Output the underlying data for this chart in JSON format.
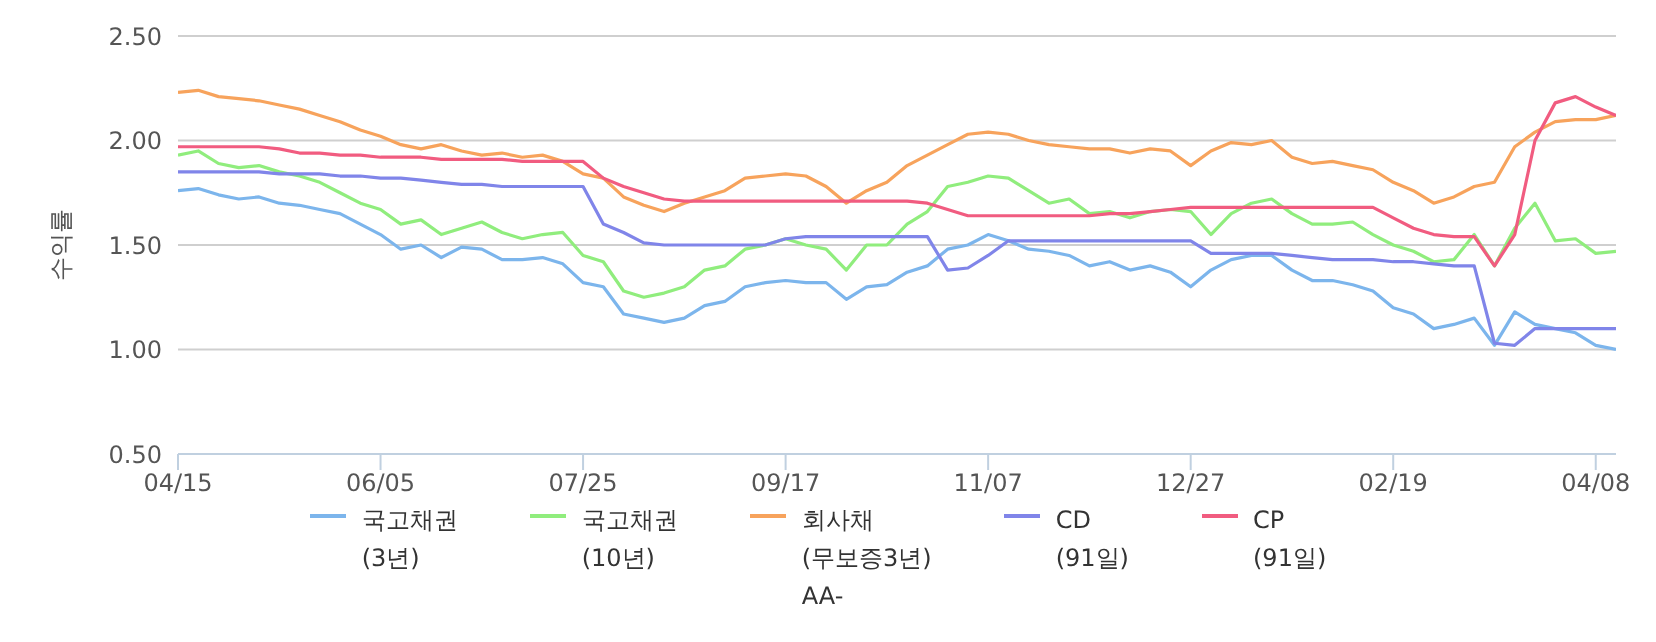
{
  "chart_data": {
    "type": "line",
    "ylabel": "수익률",
    "categories": [
      "04/15",
      null,
      null,
      null,
      null,
      null,
      null,
      null,
      null,
      null,
      "06/05",
      null,
      null,
      null,
      null,
      null,
      null,
      null,
      null,
      null,
      "07/25",
      null,
      null,
      null,
      null,
      null,
      null,
      null,
      null,
      null,
      "09/17",
      null,
      null,
      null,
      null,
      null,
      null,
      null,
      null,
      null,
      "11/07",
      null,
      null,
      null,
      null,
      null,
      null,
      null,
      null,
      null,
      "12/27",
      null,
      null,
      null,
      null,
      null,
      null,
      null,
      null,
      null,
      "02/19",
      null,
      null,
      null,
      null,
      null,
      null,
      null,
      null,
      null,
      "04/08",
      null
    ],
    "ylim": [
      0.5,
      2.5
    ],
    "yticks": [
      {
        "value": 0.5,
        "label": "0.50"
      },
      {
        "value": 1,
        "label": "1.00"
      },
      {
        "value": 1.5,
        "label": "1.50"
      },
      {
        "value": 2,
        "label": "2.00"
      },
      {
        "value": 2.5,
        "label": "2.50"
      }
    ],
    "grid": "y",
    "legend": "bottom",
    "marker": "none",
    "line_style": "solid",
    "series": [
      {
        "name": "국고채권\n(3년)",
        "color": "#7cb5ec",
        "values": [
          1.76,
          1.77,
          1.74,
          1.72,
          1.73,
          1.7,
          1.69,
          1.67,
          1.65,
          1.6,
          1.55,
          1.48,
          1.5,
          1.44,
          1.49,
          1.48,
          1.43,
          1.43,
          1.44,
          1.41,
          1.32,
          1.3,
          1.17,
          1.15,
          1.13,
          1.15,
          1.21,
          1.23,
          1.3,
          1.32,
          1.33,
          1.32,
          1.32,
          1.24,
          1.3,
          1.31,
          1.37,
          1.4,
          1.48,
          1.5,
          1.55,
          1.52,
          1.48,
          1.47,
          1.45,
          1.4,
          1.42,
          1.38,
          1.4,
          1.37,
          1.3,
          1.38,
          1.43,
          1.45,
          1.45,
          1.38,
          1.33,
          1.33,
          1.31,
          1.28,
          1.2,
          1.17,
          1.1,
          1.12,
          1.15,
          1.02,
          1.18,
          1.12,
          1.1,
          1.08,
          1.02,
          1.0
        ]
      },
      {
        "name": "국고채권\n(10년)",
        "color": "#90ed7d",
        "values": [
          1.93,
          1.95,
          1.89,
          1.87,
          1.88,
          1.85,
          1.83,
          1.8,
          1.75,
          1.7,
          1.67,
          1.6,
          1.62,
          1.55,
          1.58,
          1.61,
          1.56,
          1.53,
          1.55,
          1.56,
          1.45,
          1.42,
          1.28,
          1.25,
          1.27,
          1.3,
          1.38,
          1.4,
          1.48,
          1.5,
          1.53,
          1.5,
          1.48,
          1.38,
          1.5,
          1.5,
          1.6,
          1.66,
          1.78,
          1.8,
          1.83,
          1.82,
          1.76,
          1.7,
          1.72,
          1.65,
          1.66,
          1.63,
          1.66,
          1.67,
          1.66,
          1.55,
          1.65,
          1.7,
          1.72,
          1.65,
          1.6,
          1.6,
          1.61,
          1.55,
          1.5,
          1.47,
          1.42,
          1.43,
          1.55,
          1.4,
          1.58,
          1.7,
          1.52,
          1.53,
          1.46,
          1.47
        ]
      },
      {
        "name": "회사채\n(무보증3년)\nAA-",
        "color": "#f7a35c",
        "values": [
          2.23,
          2.24,
          2.21,
          2.2,
          2.19,
          2.17,
          2.15,
          2.12,
          2.09,
          2.05,
          2.02,
          1.98,
          1.96,
          1.98,
          1.95,
          1.93,
          1.94,
          1.92,
          1.93,
          1.9,
          1.84,
          1.82,
          1.73,
          1.69,
          1.66,
          1.7,
          1.73,
          1.76,
          1.82,
          1.83,
          1.84,
          1.83,
          1.78,
          1.7,
          1.76,
          1.8,
          1.88,
          1.93,
          1.98,
          2.03,
          2.04,
          2.03,
          2.0,
          1.98,
          1.97,
          1.96,
          1.96,
          1.94,
          1.96,
          1.95,
          1.88,
          1.95,
          1.99,
          1.98,
          2.0,
          1.92,
          1.89,
          1.9,
          1.88,
          1.86,
          1.8,
          1.76,
          1.7,
          1.73,
          1.78,
          1.8,
          1.97,
          2.04,
          2.09,
          2.1,
          2.1,
          2.12
        ]
      },
      {
        "name": "CD\n(91일)",
        "color": "#8085e9",
        "values": [
          1.85,
          1.85,
          1.85,
          1.85,
          1.85,
          1.84,
          1.84,
          1.84,
          1.83,
          1.83,
          1.82,
          1.82,
          1.81,
          1.8,
          1.79,
          1.79,
          1.78,
          1.78,
          1.78,
          1.78,
          1.78,
          1.6,
          1.56,
          1.51,
          1.5,
          1.5,
          1.5,
          1.5,
          1.5,
          1.5,
          1.53,
          1.54,
          1.54,
          1.54,
          1.54,
          1.54,
          1.54,
          1.54,
          1.38,
          1.39,
          1.45,
          1.52,
          1.52,
          1.52,
          1.52,
          1.52,
          1.52,
          1.52,
          1.52,
          1.52,
          1.52,
          1.46,
          1.46,
          1.46,
          1.46,
          1.45,
          1.44,
          1.43,
          1.43,
          1.43,
          1.42,
          1.42,
          1.41,
          1.4,
          1.4,
          1.03,
          1.02,
          1.1,
          1.1,
          1.1,
          1.1,
          1.1
        ]
      },
      {
        "name": "CP\n(91일)",
        "color": "#f15c80",
        "values": [
          1.97,
          1.97,
          1.97,
          1.97,
          1.97,
          1.96,
          1.94,
          1.94,
          1.93,
          1.93,
          1.92,
          1.92,
          1.92,
          1.91,
          1.91,
          1.91,
          1.91,
          1.9,
          1.9,
          1.9,
          1.9,
          1.82,
          1.78,
          1.75,
          1.72,
          1.71,
          1.71,
          1.71,
          1.71,
          1.71,
          1.71,
          1.71,
          1.71,
          1.71,
          1.71,
          1.71,
          1.71,
          1.7,
          1.67,
          1.64,
          1.64,
          1.64,
          1.64,
          1.64,
          1.64,
          1.64,
          1.65,
          1.65,
          1.66,
          1.67,
          1.68,
          1.68,
          1.68,
          1.68,
          1.68,
          1.68,
          1.68,
          1.68,
          1.68,
          1.68,
          1.63,
          1.58,
          1.55,
          1.54,
          1.54,
          1.4,
          1.55,
          2.0,
          2.18,
          2.21,
          2.16,
          2.12
        ]
      }
    ]
  }
}
